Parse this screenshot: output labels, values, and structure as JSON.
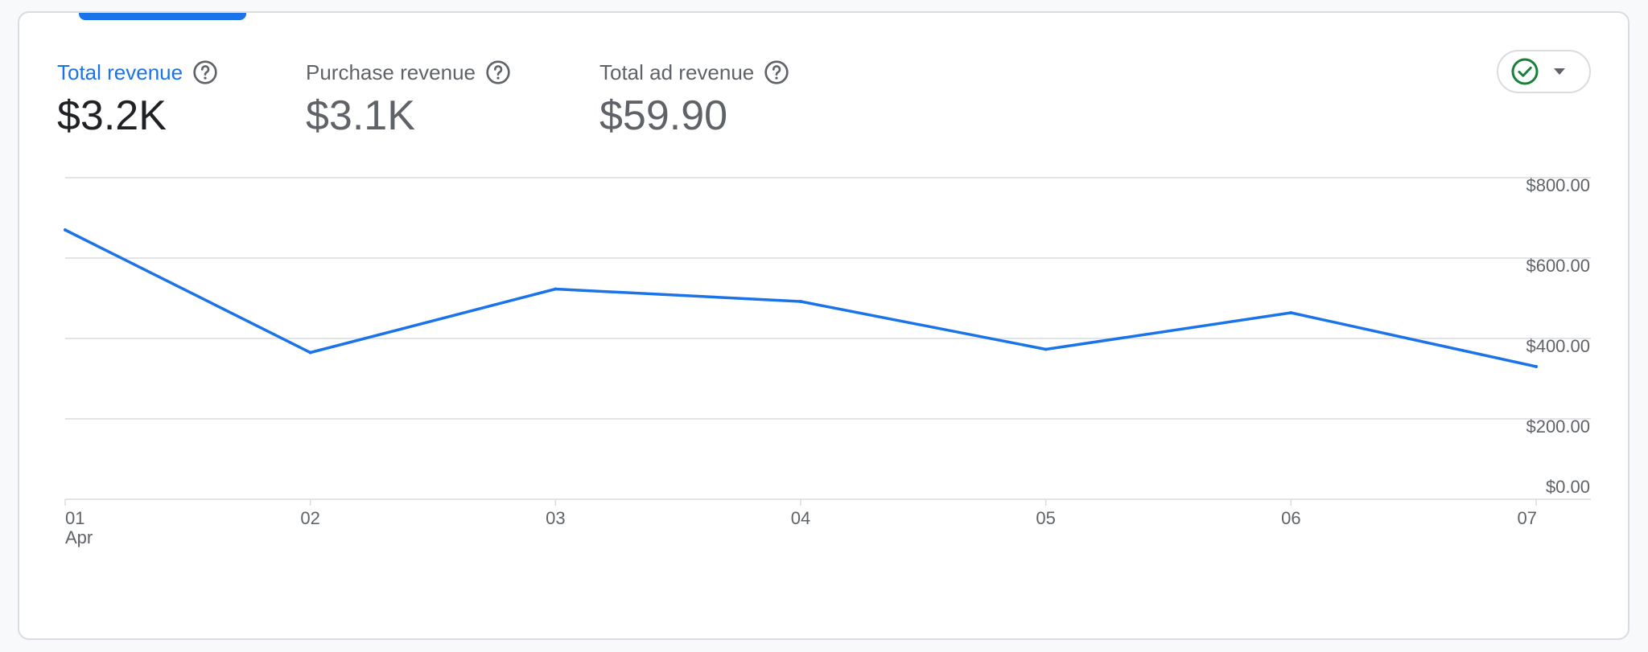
{
  "metrics": [
    {
      "label": "Total revenue",
      "value": "$3.2K",
      "active": true
    },
    {
      "label": "Purchase revenue",
      "value": "$3.1K",
      "active": false
    },
    {
      "label": "Total ad revenue",
      "value": "$59.90",
      "active": false
    }
  ],
  "status_chip": {
    "icon": "check-circle-icon",
    "caret": "caret-down-icon"
  },
  "colors": {
    "accent": "#1a73e8",
    "line": "#1a73e8",
    "check": "#188038",
    "grid": "#dadce0"
  },
  "chart_data": {
    "type": "line",
    "x": [
      "01",
      "02",
      "03",
      "04",
      "05",
      "06",
      "07"
    ],
    "x_sublabel": "Apr",
    "series": [
      {
        "values": [
          670,
          365,
          523,
          492,
          373,
          464,
          330
        ]
      }
    ],
    "ylim": [
      0,
      800
    ],
    "y_ticks": [
      {
        "value": 0,
        "label": "$0.00"
      },
      {
        "value": 200,
        "label": "$200.00"
      },
      {
        "value": 400,
        "label": "$400.00"
      },
      {
        "value": 600,
        "label": "$600.00"
      },
      {
        "value": 800,
        "label": "$800.00"
      }
    ],
    "grid": true,
    "y_axis_position": "right"
  }
}
